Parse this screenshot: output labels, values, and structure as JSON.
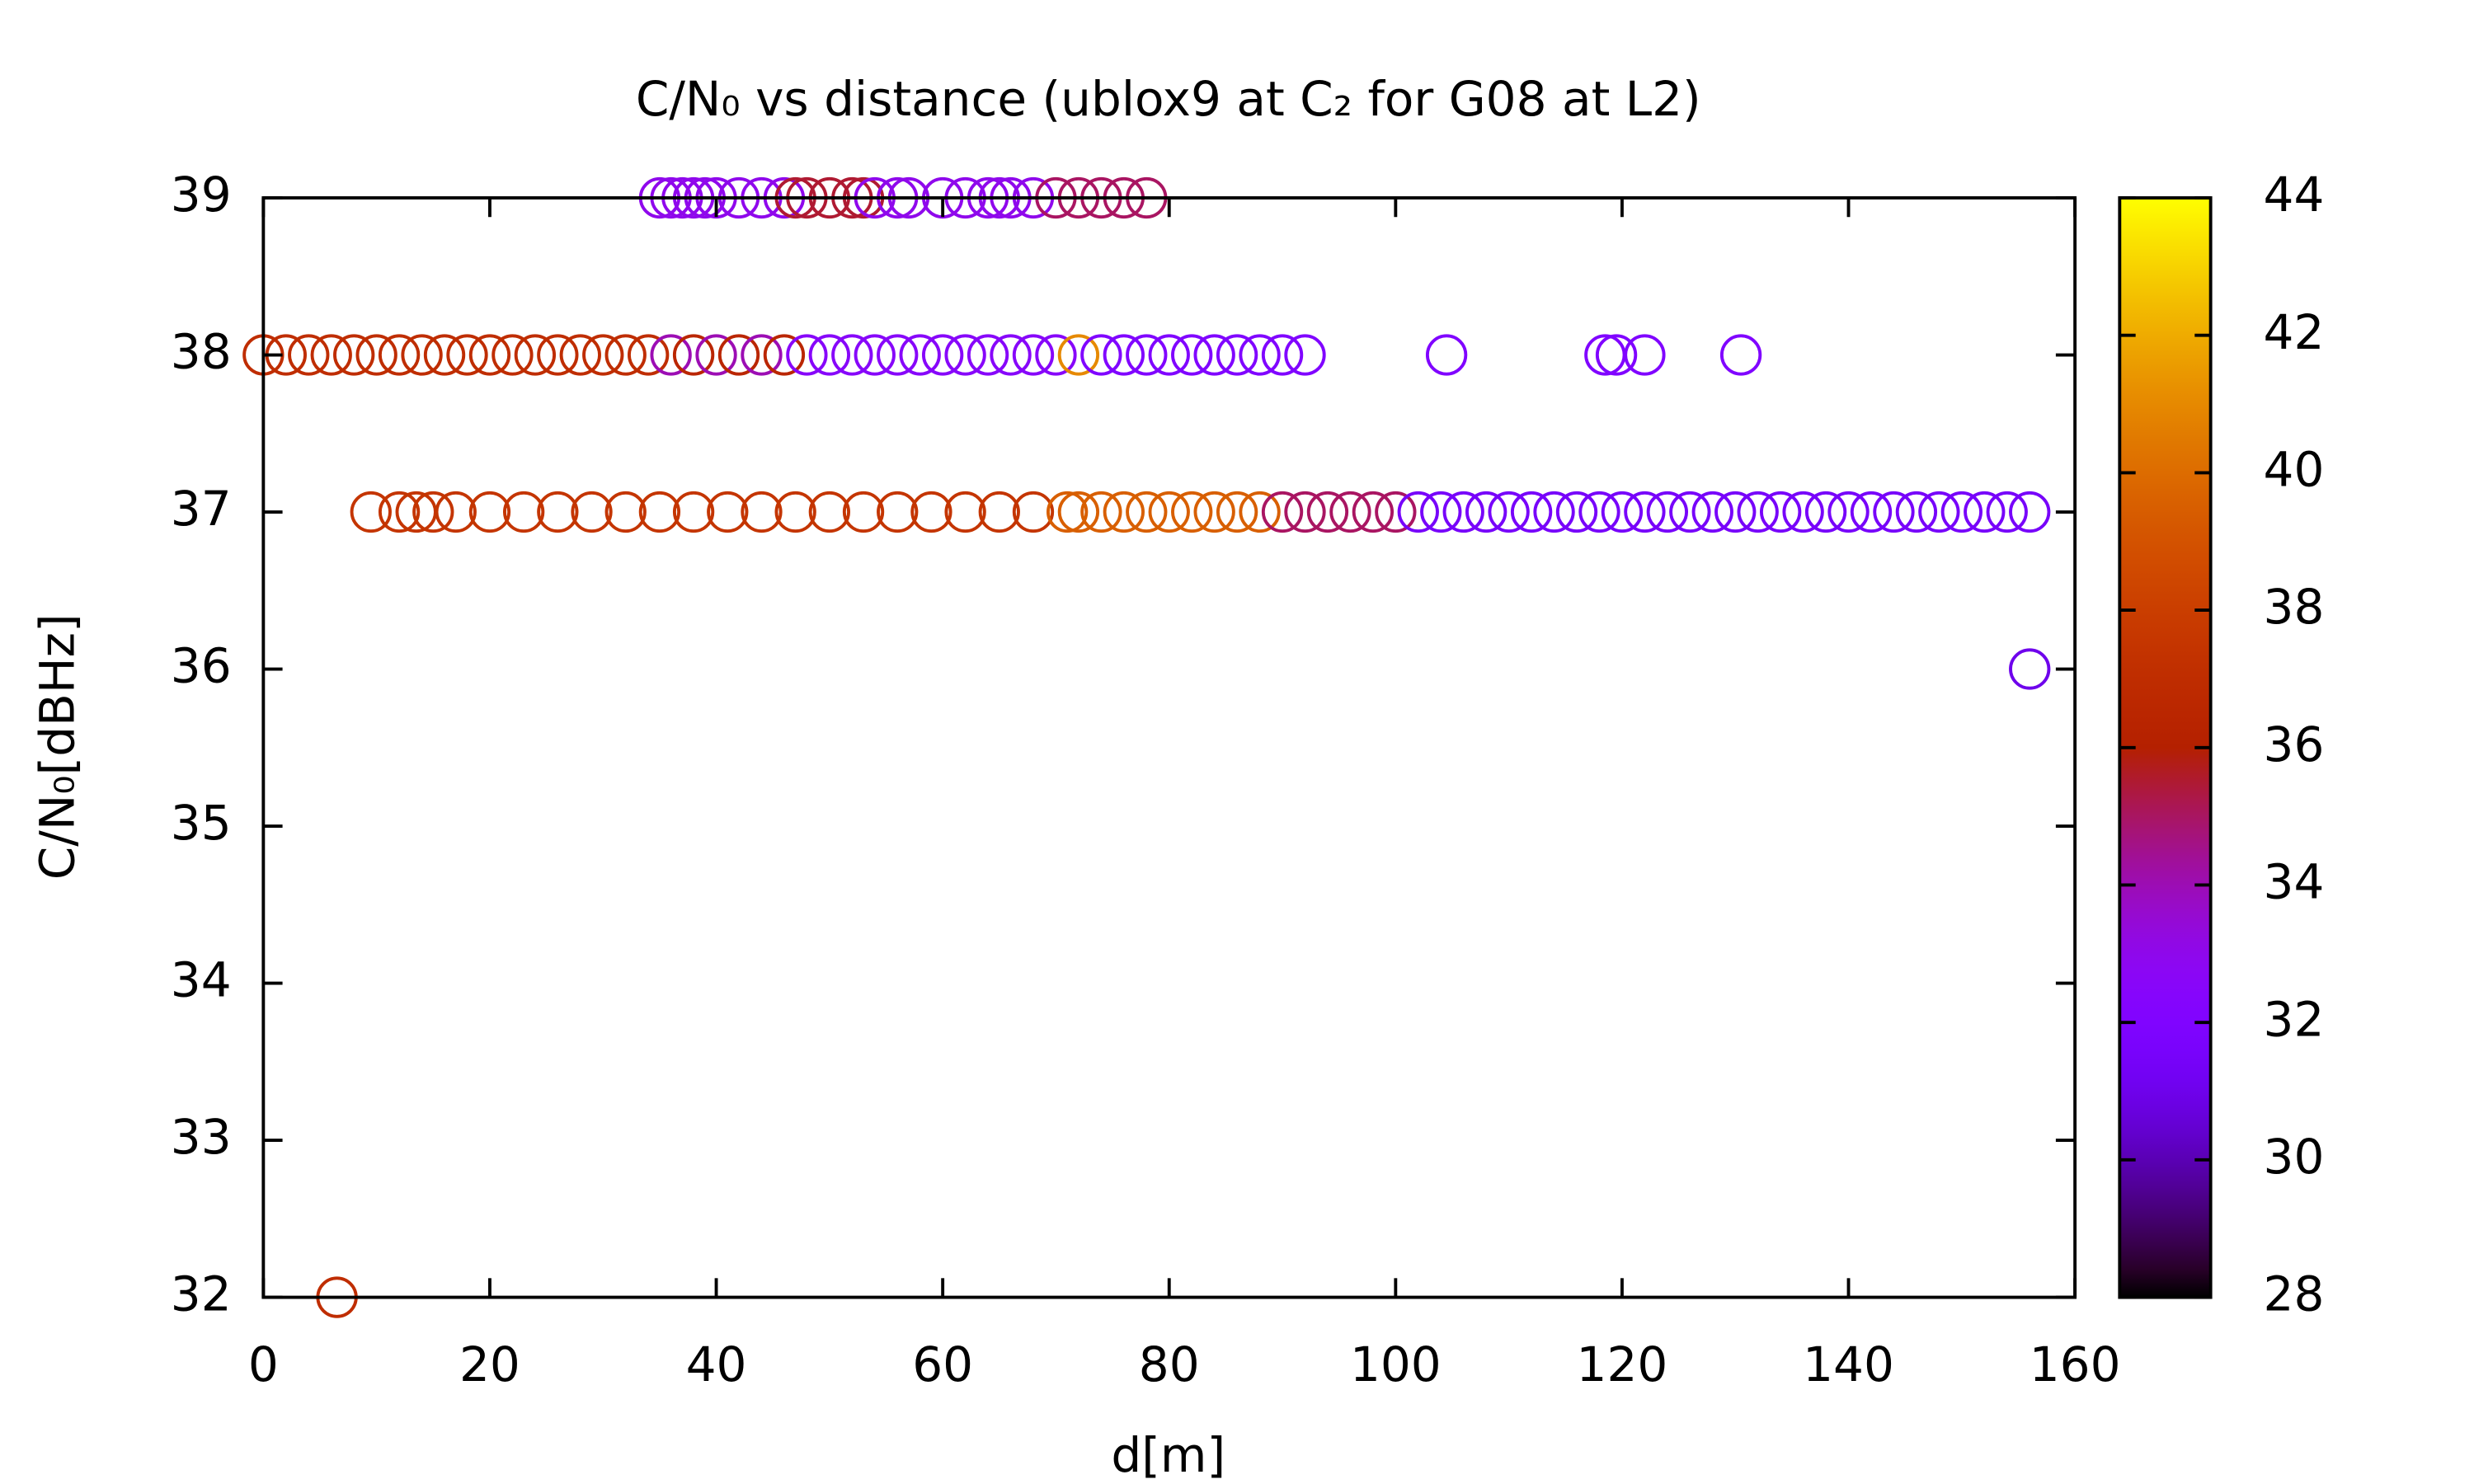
{
  "chart_data": {
    "type": "scatter",
    "title": "C/N₀ vs distance (ublox9 at C₂ for G08 at L2)",
    "x_label": "d[m]",
    "y_label": "C/N₀[dBHz]",
    "xlim": [
      0,
      160
    ],
    "xticks": [
      0,
      20,
      40,
      60,
      80,
      100,
      120,
      140,
      160
    ],
    "ylim": [
      32,
      39
    ],
    "yticks": [
      32,
      33,
      34,
      35,
      36,
      37,
      38,
      39
    ],
    "cblim": [
      28,
      44
    ],
    "cbticks": [
      28,
      30,
      32,
      34,
      36,
      38,
      40,
      42,
      44
    ],
    "colormap": "gnuplot",
    "marker": "open-circle",
    "x": [
      35,
      36,
      37,
      38,
      39,
      40,
      42,
      44,
      46,
      47,
      48,
      50,
      52,
      53,
      54,
      56,
      57,
      60,
      62,
      64,
      65,
      66,
      68,
      70,
      72,
      74,
      76,
      78,
      0,
      2,
      4,
      6,
      8,
      10,
      12,
      14,
      16,
      18,
      20,
      22,
      24,
      26,
      28,
      30,
      32,
      34,
      36,
      38,
      40,
      42,
      44,
      46,
      48,
      50,
      52,
      54,
      56,
      58,
      60,
      62,
      64,
      66,
      68,
      70,
      72,
      74,
      76,
      78,
      80,
      82,
      84,
      86,
      88,
      90,
      92,
      104.5,
      118.5,
      119.5,
      122,
      130.5,
      9.5,
      12,
      13.5,
      15,
      17,
      20,
      23,
      26,
      29,
      32,
      35,
      38,
      41,
      44,
      47,
      50,
      53,
      56,
      59,
      62,
      65,
      68,
      71,
      72,
      74,
      76,
      78,
      80,
      82,
      84,
      86,
      88,
      90,
      92,
      94,
      96,
      98,
      100,
      102,
      104,
      106,
      108,
      110,
      112,
      114,
      116,
      118,
      120,
      122,
      124,
      126,
      128,
      130,
      132,
      134,
      136,
      138,
      140,
      142,
      144,
      146,
      148,
      150,
      152,
      154,
      156,
      156,
      6.5
    ],
    "y": [
      39,
      39,
      39,
      39,
      39,
      39,
      39,
      39,
      39,
      39,
      39,
      39,
      39,
      39,
      39,
      39,
      39,
      39,
      39,
      39,
      39,
      39,
      39,
      39,
      39,
      39,
      39,
      39,
      38,
      38,
      38,
      38,
      38,
      38,
      38,
      38,
      38,
      38,
      38,
      38,
      38,
      38,
      38,
      38,
      38,
      38,
      38,
      38,
      38,
      38,
      38,
      38,
      38,
      38,
      38,
      38,
      38,
      38,
      38,
      38,
      38,
      38,
      38,
      38,
      38,
      38,
      38,
      38,
      38,
      38,
      38,
      38,
      38,
      38,
      38,
      38,
      38,
      38,
      38,
      38,
      37,
      37,
      37,
      37,
      37,
      37,
      37,
      37,
      37,
      37,
      37,
      37,
      37,
      37,
      37,
      37,
      37,
      37,
      37,
      37,
      37,
      37,
      37,
      37,
      37,
      37,
      37,
      37,
      37,
      37,
      37,
      37,
      37,
      37,
      37,
      37,
      37,
      37,
      37,
      37,
      37,
      37,
      37,
      37,
      37,
      37,
      37,
      37,
      37,
      37,
      37,
      37,
      37,
      37,
      37,
      37,
      37,
      37,
      37,
      37,
      37,
      37,
      37,
      37,
      37,
      37,
      36,
      32
    ],
    "c": [
      33,
      33,
      33,
      33,
      33,
      33,
      33,
      33,
      33,
      35.5,
      35.5,
      35.5,
      35.5,
      35.5,
      33,
      33,
      33,
      33,
      33,
      33,
      33,
      33,
      33,
      35,
      35,
      35,
      35,
      35,
      37,
      37,
      37,
      37,
      37,
      37,
      37,
      37,
      37,
      37,
      37,
      37,
      37,
      37,
      37,
      37,
      37,
      37,
      34,
      36.5,
      34,
      36.5,
      34,
      36.5,
      32.5,
      32.5,
      32.5,
      32.5,
      32.5,
      32.5,
      32.5,
      32.5,
      32.5,
      32.5,
      32.5,
      32.5,
      41,
      32,
      32,
      32,
      32,
      32,
      32,
      32,
      32,
      32,
      32,
      32,
      32,
      32,
      32,
      32,
      37.5,
      37.5,
      37.5,
      37.5,
      37.5,
      37.5,
      37.5,
      37.5,
      37.5,
      37.5,
      37.5,
      37.5,
      37.5,
      37.5,
      37.5,
      37.5,
      37.5,
      37.5,
      37.5,
      37.5,
      37.5,
      37.5,
      39.5,
      39.5,
      39.5,
      39.5,
      39.5,
      39.5,
      39.5,
      39.5,
      39.5,
      39.5,
      35,
      35,
      35,
      35,
      35,
      35,
      31.5,
      31.5,
      31.5,
      31.5,
      31.5,
      31.5,
      31.5,
      31.5,
      31.5,
      31.5,
      31.5,
      31.5,
      31.5,
      31.5,
      31.5,
      31.5,
      31.5,
      31.5,
      31.5,
      31.5,
      31.5,
      31.5,
      31.5,
      31.5,
      31.5,
      31.5,
      31.5,
      31.5,
      31,
      37
    ]
  }
}
